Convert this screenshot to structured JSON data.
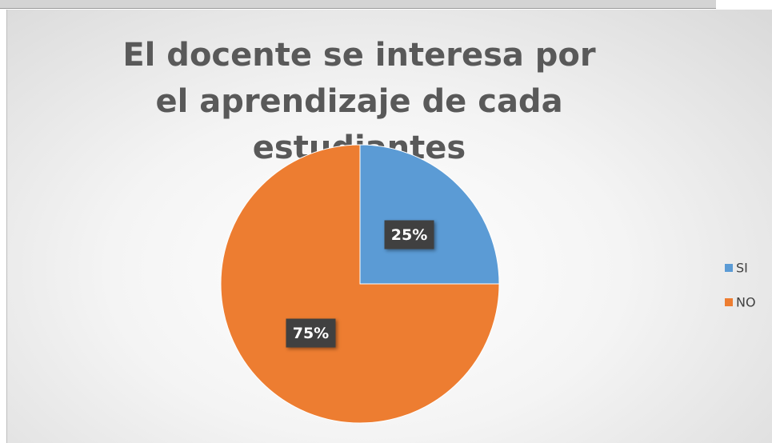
{
  "chart_data": {
    "type": "pie",
    "title": "El docente se interesa por el aprendizaje de cada estudiantes",
    "categories": [
      "SI",
      "NO"
    ],
    "values": [
      25,
      75
    ],
    "value_labels": [
      "25%",
      "75%"
    ],
    "colors": [
      "#5b9bd5",
      "#ed7d31"
    ],
    "legend": "right"
  }
}
